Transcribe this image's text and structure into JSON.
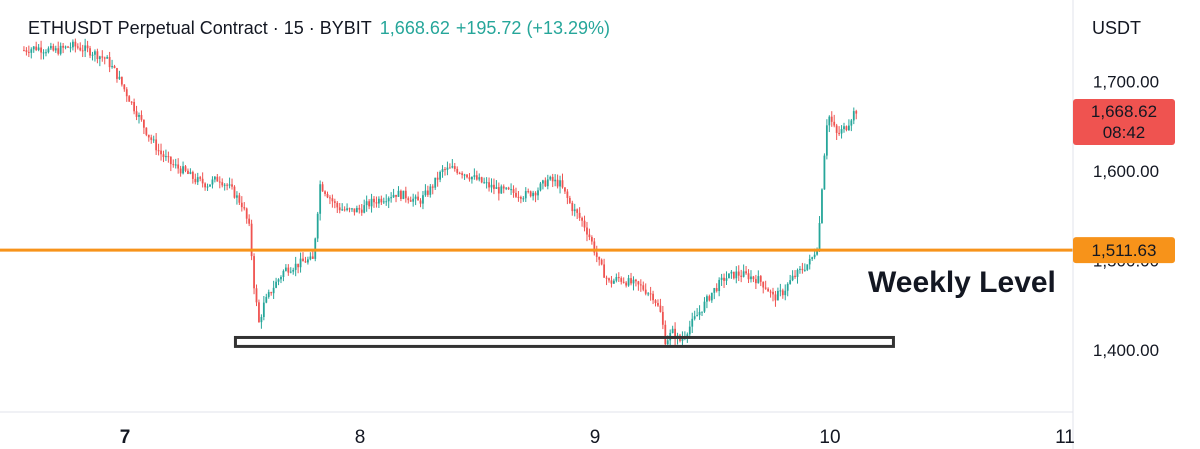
{
  "header": {
    "symbol": "ETHUSDT Perpetual Contract · 15 · BYBIT",
    "last_price": "1,668.62",
    "change": "+195.72 (+13.29%)"
  },
  "axis": {
    "currency": "USDT",
    "price_tag": {
      "value": "1,668.62",
      "countdown": "08:42"
    },
    "level_tag": "1,511.63"
  },
  "annotation": {
    "text": "Weekly Level"
  },
  "colors": {
    "up": "#26a69a",
    "down": "#ef5350",
    "level_line": "#f7931a",
    "price_tag_bg": "#ef5350",
    "support_box": "#333333"
  },
  "chart_data": {
    "type": "candlestick",
    "title": "ETHUSDT Perpetual Contract · 15 · BYBIT",
    "xlabel": "",
    "ylabel": "",
    "ylim": [
      1370,
      1730
    ],
    "xlim": [
      6.57,
      11.05
    ],
    "y_ticks": [
      1400,
      1500,
      1600,
      1700
    ],
    "y_tick_labels": [
      "1,400.00",
      "1,500.00",
      "1,600.00",
      "1,700.00"
    ],
    "x_ticks": [
      7,
      8,
      9,
      10,
      11
    ],
    "x_tick_labels": [
      "7",
      "8",
      "9",
      "10",
      "11"
    ],
    "horizontal_line": {
      "value": 1511.63,
      "label": "1,511.63"
    },
    "support_zone": {
      "x_start": 7.47,
      "x_end": 10.27,
      "y_low": 1404,
      "y_high": 1414
    },
    "last_price": 1668.62,
    "price_path": [
      [
        6.57,
        1735
      ],
      [
        6.62,
        1738
      ],
      [
        6.7,
        1734
      ],
      [
        6.78,
        1740
      ],
      [
        6.86,
        1733
      ],
      [
        6.92,
        1725
      ],
      [
        6.96,
        1710
      ],
      [
        7.0,
        1690
      ],
      [
        7.05,
        1665
      ],
      [
        7.1,
        1640
      ],
      [
        7.15,
        1620
      ],
      [
        7.2,
        1607
      ],
      [
        7.25,
        1600
      ],
      [
        7.3,
        1590
      ],
      [
        7.35,
        1585
      ],
      [
        7.4,
        1592
      ],
      [
        7.45,
        1580
      ],
      [
        7.5,
        1562
      ],
      [
        7.53,
        1535
      ],
      [
        7.55,
        1470
      ],
      [
        7.57,
        1430
      ],
      [
        7.59,
        1450
      ],
      [
        7.63,
        1470
      ],
      [
        7.68,
        1490
      ],
      [
        7.73,
        1495
      ],
      [
        7.77,
        1500
      ],
      [
        7.8,
        1500
      ],
      [
        7.83,
        1585
      ],
      [
        7.86,
        1575
      ],
      [
        7.9,
        1560
      ],
      [
        7.95,
        1555
      ],
      [
        8.0,
        1557
      ],
      [
        8.05,
        1565
      ],
      [
        8.1,
        1570
      ],
      [
        8.15,
        1575
      ],
      [
        8.2,
        1572
      ],
      [
        8.25,
        1565
      ],
      [
        8.3,
        1580
      ],
      [
        8.35,
        1600
      ],
      [
        8.4,
        1603
      ],
      [
        8.45,
        1597
      ],
      [
        8.5,
        1590
      ],
      [
        8.55,
        1583
      ],
      [
        8.6,
        1578
      ],
      [
        8.65,
        1576
      ],
      [
        8.7,
        1573
      ],
      [
        8.75,
        1578
      ],
      [
        8.8,
        1590
      ],
      [
        8.85,
        1586
      ],
      [
        8.9,
        1560
      ],
      [
        8.95,
        1542
      ],
      [
        8.98,
        1525
      ],
      [
        9.02,
        1495
      ],
      [
        9.06,
        1475
      ],
      [
        9.1,
        1480
      ],
      [
        9.15,
        1475
      ],
      [
        9.2,
        1470
      ],
      [
        9.25,
        1460
      ],
      [
        9.28,
        1440
      ],
      [
        9.3,
        1410
      ],
      [
        9.33,
        1420
      ],
      [
        9.36,
        1410
      ],
      [
        9.4,
        1425
      ],
      [
        9.45,
        1445
      ],
      [
        9.5,
        1465
      ],
      [
        9.55,
        1480
      ],
      [
        9.6,
        1485
      ],
      [
        9.65,
        1483
      ],
      [
        9.7,
        1478
      ],
      [
        9.73,
        1470
      ],
      [
        9.76,
        1458
      ],
      [
        9.8,
        1465
      ],
      [
        9.84,
        1480
      ],
      [
        9.88,
        1490
      ],
      [
        9.92,
        1500
      ],
      [
        9.95,
        1520
      ],
      [
        9.97,
        1600
      ],
      [
        9.99,
        1665
      ],
      [
        10.03,
        1640
      ],
      [
        10.07,
        1650
      ],
      [
        10.1,
        1665
      ],
      [
        10.115,
        1668.62
      ]
    ]
  }
}
